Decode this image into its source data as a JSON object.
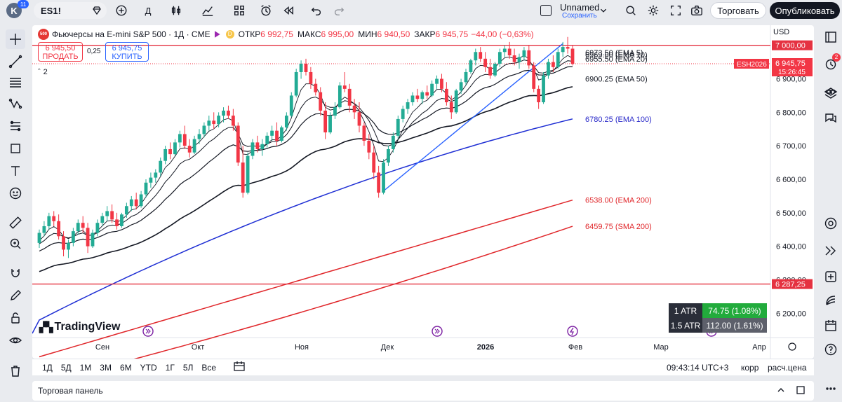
{
  "topbar": {
    "avatar_letter": "K",
    "avatar_badge": "11",
    "symbol": "ES1!",
    "interval": "Д",
    "layout_name": "Unnamed",
    "save_status": "Сохранить",
    "trade_label": "Торговать",
    "publish_label": "Опубликовать"
  },
  "legend": {
    "logo_text": "500",
    "title": "Фьючерсы на E-mini S&P 500 · 1Д · CME",
    "open_label": "ОТКР",
    "open_value": "6 992,75",
    "high_label": "МАКС",
    "high_value": "6 995,00",
    "low_label": "МИН",
    "low_value": "6 940,50",
    "close_label": "ЗАКР",
    "close_value": "6 945,75",
    "change": "−44,00 (−0,63%)",
    "currency": "USD"
  },
  "trade_buttons": {
    "sell_price": "6 945,50",
    "sell_label": "ПРОДАТЬ",
    "spread": "0,25",
    "buy_price": "6 945,75",
    "buy_label": "КУПИТЬ"
  },
  "collapse_count": "2",
  "price_axis": {
    "ticks": [
      "6 900,00",
      "6 800,00",
      "6 700,00",
      "6 600,00",
      "6 500,00",
      "6 400,00",
      "6 300,00",
      "6 200,00"
    ],
    "label_7000": "7 000,00",
    "label_6287": "6 287,25",
    "symbol_tag": "ESH2026",
    "last_price": "6 945,75",
    "countdown": "15:26:45"
  },
  "time_axis": {
    "labels": [
      "Сен",
      "Окт",
      "Ноя",
      "Дек",
      "2026",
      "Фев",
      "Мар",
      "Апр"
    ]
  },
  "ema_labels": [
    {
      "text": "6973.50 (EMA 5)",
      "color": "#131722"
    },
    {
      "text": "6969.00 (EMA 10)",
      "color": "#131722"
    },
    {
      "text": "6955.50 (EMA 20)",
      "color": "#131722"
    },
    {
      "text": "6900.25 (EMA 50)",
      "color": "#131722"
    },
    {
      "text": "6780.25 (EMA 100)",
      "color": "#2929c9"
    },
    {
      "text": "6538.00 (EMA 200)",
      "color": "#e0262a"
    },
    {
      "text": "6459.75 (SMA 200)",
      "color": "#e0262a"
    }
  ],
  "atr": [
    {
      "label": "1 ATR",
      "value": "74.75 (1.08%)",
      "color": "#22ab3c"
    },
    {
      "label": "1.5 ATR",
      "value": "112.00 (1.61%)",
      "color": "#5d606b"
    }
  ],
  "watermark": "TradingView",
  "bottombar": {
    "ranges": [
      "1Д",
      "5Д",
      "1М",
      "3М",
      "6М",
      "YTD",
      "1Г",
      "5Л",
      "Все"
    ],
    "clock": "09:43:14 UTC+3",
    "adj": "корр",
    "ext": "расч.цена"
  },
  "trade_panel_label": "Торговая панель",
  "notification_badge": "2",
  "colors": {
    "up": "#22ab94",
    "down": "#f23645",
    "hline": "#e53241",
    "ema100": "#1f2fd4",
    "ema200": "#e0262a",
    "trendline": "#2962ff"
  },
  "chart_data": {
    "type": "candlestick",
    "ylim": [
      6140,
      7060
    ],
    "horizontal_lines": [
      7000,
      6287.25
    ],
    "candles": [
      [
        6410,
        6450,
        6395,
        6440
      ],
      [
        6440,
        6475,
        6430,
        6460
      ],
      [
        6460,
        6500,
        6450,
        6490
      ],
      [
        6490,
        6505,
        6460,
        6475
      ],
      [
        6475,
        6495,
        6420,
        6430
      ],
      [
        6430,
        6445,
        6370,
        6390
      ],
      [
        6390,
        6420,
        6365,
        6410
      ],
      [
        6410,
        6455,
        6400,
        6445
      ],
      [
        6445,
        6480,
        6435,
        6470
      ],
      [
        6470,
        6490,
        6440,
        6455
      ],
      [
        6455,
        6470,
        6380,
        6400
      ],
      [
        6400,
        6450,
        6395,
        6440
      ],
      [
        6440,
        6480,
        6430,
        6470
      ],
      [
        6470,
        6500,
        6460,
        6490
      ],
      [
        6490,
        6520,
        6475,
        6505
      ],
      [
        6505,
        6525,
        6470,
        6480
      ],
      [
        6480,
        6500,
        6450,
        6460
      ],
      [
        6460,
        6500,
        6455,
        6495
      ],
      [
        6495,
        6530,
        6485,
        6520
      ],
      [
        6520,
        6550,
        6505,
        6540
      ],
      [
        6540,
        6560,
        6510,
        6520
      ],
      [
        6520,
        6565,
        6515,
        6555
      ],
      [
        6555,
        6600,
        6545,
        6590
      ],
      [
        6590,
        6620,
        6575,
        6605
      ],
      [
        6605,
        6630,
        6590,
        6620
      ],
      [
        6620,
        6665,
        6610,
        6655
      ],
      [
        6655,
        6700,
        6645,
        6690
      ],
      [
        6690,
        6710,
        6660,
        6675
      ],
      [
        6675,
        6720,
        6670,
        6710
      ],
      [
        6710,
        6745,
        6695,
        6735
      ],
      [
        6735,
        6760,
        6690,
        6700
      ],
      [
        6700,
        6720,
        6665,
        6680
      ],
      [
        6680,
        6730,
        6675,
        6720
      ],
      [
        6720,
        6750,
        6705,
        6735
      ],
      [
        6735,
        6770,
        6725,
        6760
      ],
      [
        6760,
        6790,
        6745,
        6775
      ],
      [
        6775,
        6800,
        6750,
        6765
      ],
      [
        6765,
        6800,
        6755,
        6790
      ],
      [
        6790,
        6815,
        6770,
        6805
      ],
      [
        6805,
        6820,
        6780,
        6790
      ],
      [
        6790,
        6810,
        6745,
        6760
      ],
      [
        6760,
        6770,
        6640,
        6650
      ],
      [
        6650,
        6700,
        6545,
        6560
      ],
      [
        6560,
        6680,
        6555,
        6670
      ],
      [
        6670,
        6720,
        6660,
        6710
      ],
      [
        6710,
        6730,
        6680,
        6690
      ],
      [
        6690,
        6720,
        6670,
        6705
      ],
      [
        6705,
        6740,
        6695,
        6730
      ],
      [
        6730,
        6760,
        6715,
        6745
      ],
      [
        6745,
        6770,
        6700,
        6715
      ],
      [
        6715,
        6760,
        6710,
        6755
      ],
      [
        6755,
        6800,
        6745,
        6790
      ],
      [
        6790,
        6860,
        6785,
        6850
      ],
      [
        6850,
        6930,
        6845,
        6920
      ],
      [
        6920,
        6955,
        6900,
        6945
      ],
      [
        6945,
        6960,
        6910,
        6920
      ],
      [
        6920,
        6935,
        6870,
        6885
      ],
      [
        6885,
        6900,
        6850,
        6860
      ],
      [
        6860,
        6875,
        6790,
        6805
      ],
      [
        6805,
        6830,
        6720,
        6740
      ],
      [
        6740,
        6800,
        6735,
        6790
      ],
      [
        6790,
        6830,
        6780,
        6815
      ],
      [
        6815,
        6890,
        6810,
        6880
      ],
      [
        6880,
        6920,
        6860,
        6870
      ],
      [
        6870,
        6885,
        6800,
        6820
      ],
      [
        6820,
        6840,
        6780,
        6800
      ],
      [
        6800,
        6830,
        6740,
        6760
      ],
      [
        6760,
        6770,
        6700,
        6715
      ],
      [
        6715,
        6735,
        6660,
        6680
      ],
      [
        6680,
        6700,
        6600,
        6620
      ],
      [
        6620,
        6640,
        6545,
        6560
      ],
      [
        6560,
        6660,
        6555,
        6650
      ],
      [
        6650,
        6700,
        6640,
        6690
      ],
      [
        6690,
        6740,
        6680,
        6730
      ],
      [
        6730,
        6790,
        6720,
        6780
      ],
      [
        6780,
        6820,
        6770,
        6810
      ],
      [
        6810,
        6840,
        6795,
        6830
      ],
      [
        6830,
        6860,
        6820,
        6850
      ],
      [
        6850,
        6870,
        6830,
        6840
      ],
      [
        6840,
        6865,
        6825,
        6860
      ],
      [
        6860,
        6880,
        6840,
        6850
      ],
      [
        6850,
        6895,
        6845,
        6885
      ],
      [
        6885,
        6910,
        6870,
        6900
      ],
      [
        6900,
        6915,
        6860,
        6870
      ],
      [
        6870,
        6890,
        6820,
        6830
      ],
      [
        6830,
        6850,
        6780,
        6800
      ],
      [
        6800,
        6870,
        6795,
        6865
      ],
      [
        6865,
        6900,
        6855,
        6890
      ],
      [
        6890,
        6930,
        6880,
        6920
      ],
      [
        6920,
        6960,
        6915,
        6955
      ],
      [
        6955,
        6990,
        6940,
        6980
      ],
      [
        6980,
        6995,
        6950,
        6960
      ],
      [
        6960,
        6980,
        6920,
        6935
      ],
      [
        6935,
        6960,
        6900,
        6910
      ],
      [
        6910,
        6950,
        6905,
        6945
      ],
      [
        6945,
        6990,
        6935,
        6980
      ],
      [
        6980,
        7000,
        6965,
        6990
      ],
      [
        6990,
        7010,
        6960,
        6970
      ],
      [
        6970,
        6990,
        6940,
        6950
      ],
      [
        6950,
        6975,
        6930,
        6965
      ],
      [
        6965,
        6995,
        6955,
        6985
      ],
      [
        6985,
        7000,
        6930,
        6940
      ],
      [
        6940,
        6950,
        6860,
        6870
      ],
      [
        6870,
        6880,
        6810,
        6830
      ],
      [
        6830,
        6920,
        6825,
        6910
      ],
      [
        6910,
        6960,
        6900,
        6950
      ],
      [
        6950,
        6970,
        6920,
        6935
      ],
      [
        6935,
        6990,
        6930,
        6980
      ],
      [
        6980,
        7010,
        6965,
        6995
      ],
      [
        6995,
        7025,
        6975,
        6990
      ],
      [
        6990,
        7000,
        6940,
        6945
      ]
    ],
    "ema_final": {
      "ema5": 6973.5,
      "ema10": 6969.0,
      "ema20": 6955.5,
      "ema50": 6900.25,
      "ema100": 6780.25,
      "ema200": 6538.0,
      "sma200": 6459.75
    }
  }
}
